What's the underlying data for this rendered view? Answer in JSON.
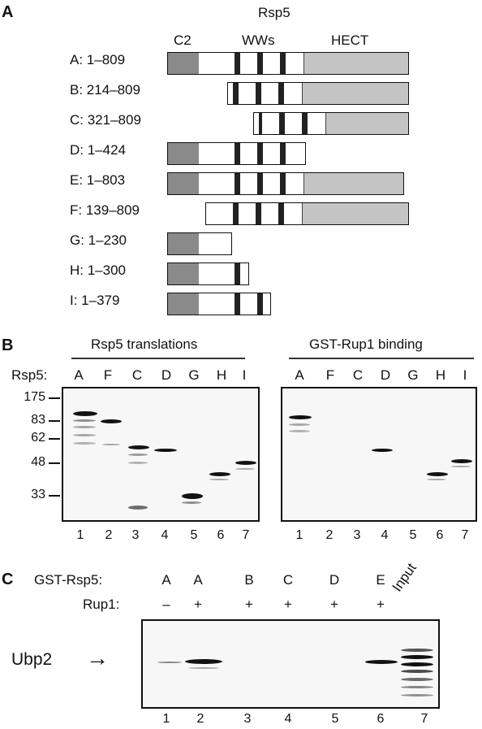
{
  "panelA": {
    "letter": "A",
    "protein_title": "Rsp5",
    "domain_labels": {
      "c2": "C2",
      "wws": "WWs",
      "hect": "HECT"
    },
    "constructs": [
      {
        "label": "A: 1–809"
      },
      {
        "label": "B: 214–809"
      },
      {
        "label": "C: 321–809"
      },
      {
        "label": "D: 1–424"
      },
      {
        "label": "E: 1–803"
      },
      {
        "label": "F: 139–809"
      },
      {
        "label": "G: 1–230"
      },
      {
        "label": "H: 1–300"
      },
      {
        "label": "I: 1–379"
      }
    ]
  },
  "panelB": {
    "letter": "B",
    "row_label": "Rsp5:",
    "left_title": "Rsp5 translations",
    "right_title": "GST-Rup1 binding",
    "lanes": [
      "A",
      "F",
      "C",
      "D",
      "G",
      "H",
      "I"
    ],
    "lane_numbers": [
      "1",
      "2",
      "3",
      "4",
      "5",
      "6",
      "7"
    ],
    "markers": [
      "175",
      "83",
      "62",
      "48",
      "33"
    ]
  },
  "panelC": {
    "letter": "C",
    "gst_label": "GST-Rsp5:",
    "rup_label": "Rup1:",
    "gst_lanes": [
      "A",
      "A",
      "B",
      "C",
      "D",
      "E"
    ],
    "rup_lanes": [
      "–",
      "+",
      "+",
      "+",
      "+",
      "+"
    ],
    "input_label": "Input",
    "band_label": "Ubp2",
    "arrow": "→",
    "lane_numbers": [
      "1",
      "2",
      "3",
      "4",
      "5",
      "6",
      "7"
    ]
  }
}
